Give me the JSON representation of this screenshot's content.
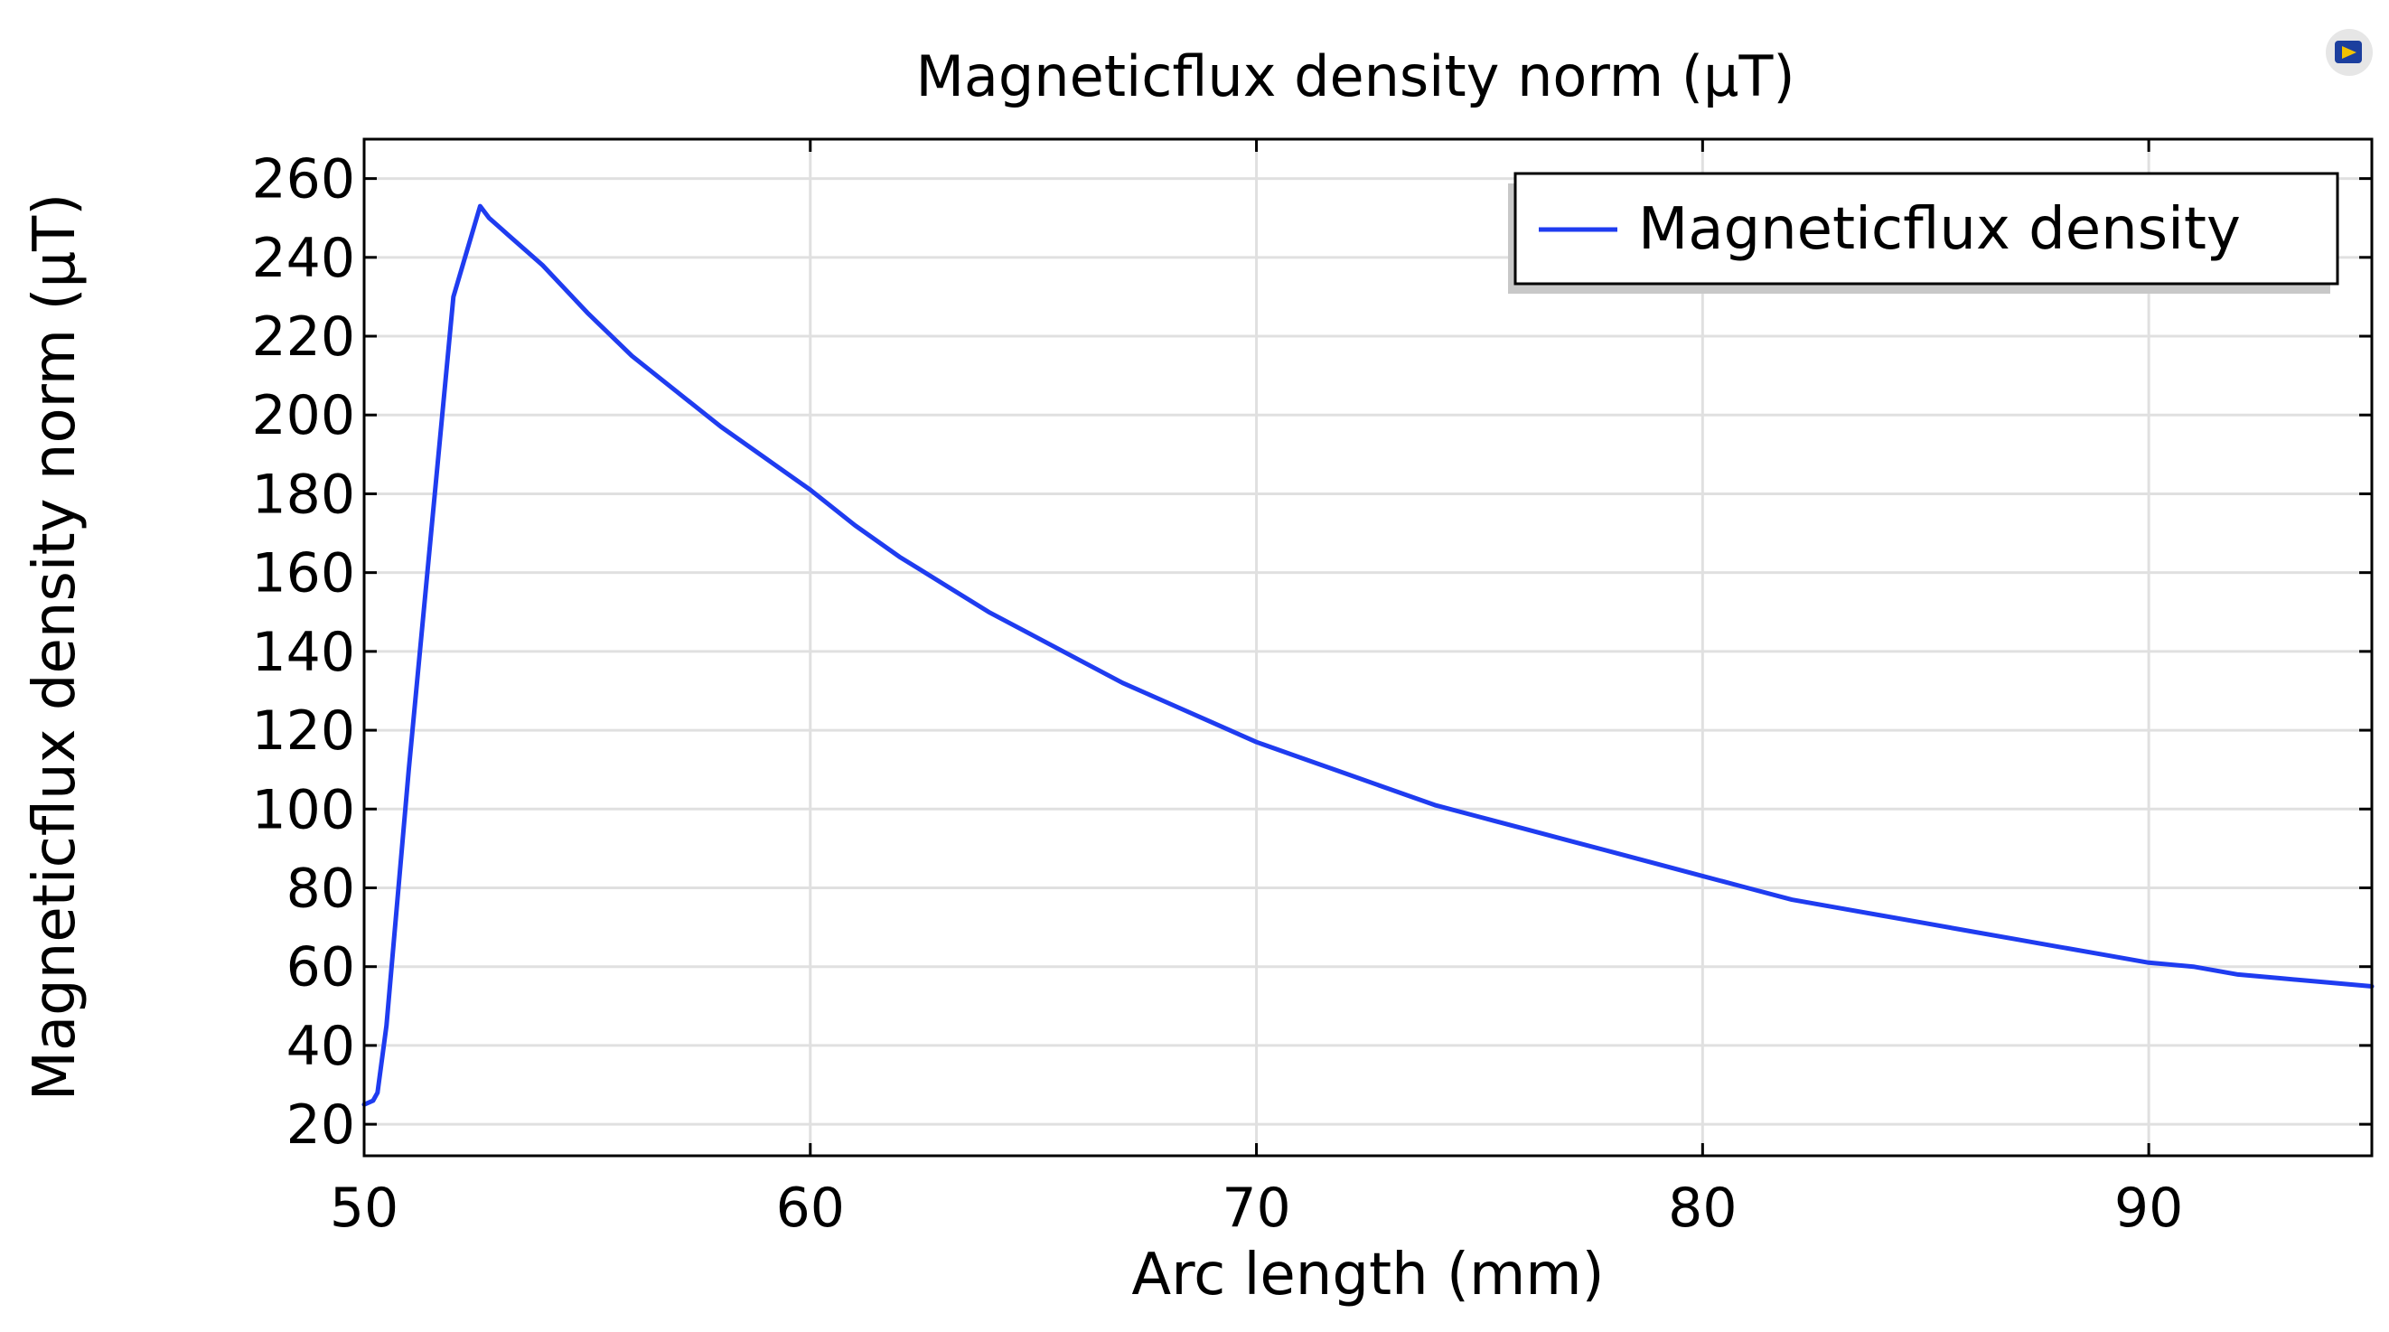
{
  "chart_data": {
    "type": "line",
    "title": "Magneticflux density norm (µT)",
    "xlabel": "Arc length (mm)",
    "ylabel": "Magneticflux density norm (µT)",
    "xlim": [
      50,
      95
    ],
    "ylim": [
      12,
      270
    ],
    "xticks": [
      50,
      60,
      70,
      80,
      90
    ],
    "yticks": [
      20,
      40,
      60,
      80,
      100,
      120,
      140,
      160,
      180,
      200,
      220,
      240,
      260
    ],
    "grid": true,
    "legend_position": "top-right",
    "series": [
      {
        "name": "Magneticflux density",
        "color": "#1f3cf0",
        "x": [
          50.0,
          50.2,
          50.3,
          50.5,
          51.0,
          51.5,
          52.0,
          52.6,
          52.8,
          53.2,
          54.0,
          54.5,
          55.0,
          56.0,
          57.0,
          58.0,
          59.0,
          60.0,
          61.0,
          62.0,
          63.0,
          64.0,
          65.0,
          66.0,
          67.0,
          68.0,
          69.0,
          70.0,
          71.0,
          72.0,
          73.0,
          74.0,
          75.0,
          76.0,
          77.0,
          78.0,
          79.0,
          80.0,
          81.0,
          82.0,
          83.0,
          84.0,
          85.0,
          86.0,
          87.0,
          88.0,
          89.0,
          90.0,
          91.0,
          92.0,
          93.0,
          94.0,
          95.0
        ],
        "y": [
          25,
          26,
          28,
          45,
          110,
          170,
          230,
          253,
          250,
          246,
          238,
          232,
          226,
          215,
          206,
          197,
          189,
          181,
          172,
          164,
          157,
          150,
          144,
          138,
          132,
          127,
          122,
          117,
          113,
          109,
          105,
          101,
          98,
          95,
          92,
          89,
          86,
          83,
          80,
          77,
          75,
          73,
          71,
          69,
          67,
          65,
          63,
          61,
          60,
          58,
          57,
          56,
          55
        ]
      }
    ]
  },
  "badge": {
    "icon": "comsol-logo-icon"
  }
}
